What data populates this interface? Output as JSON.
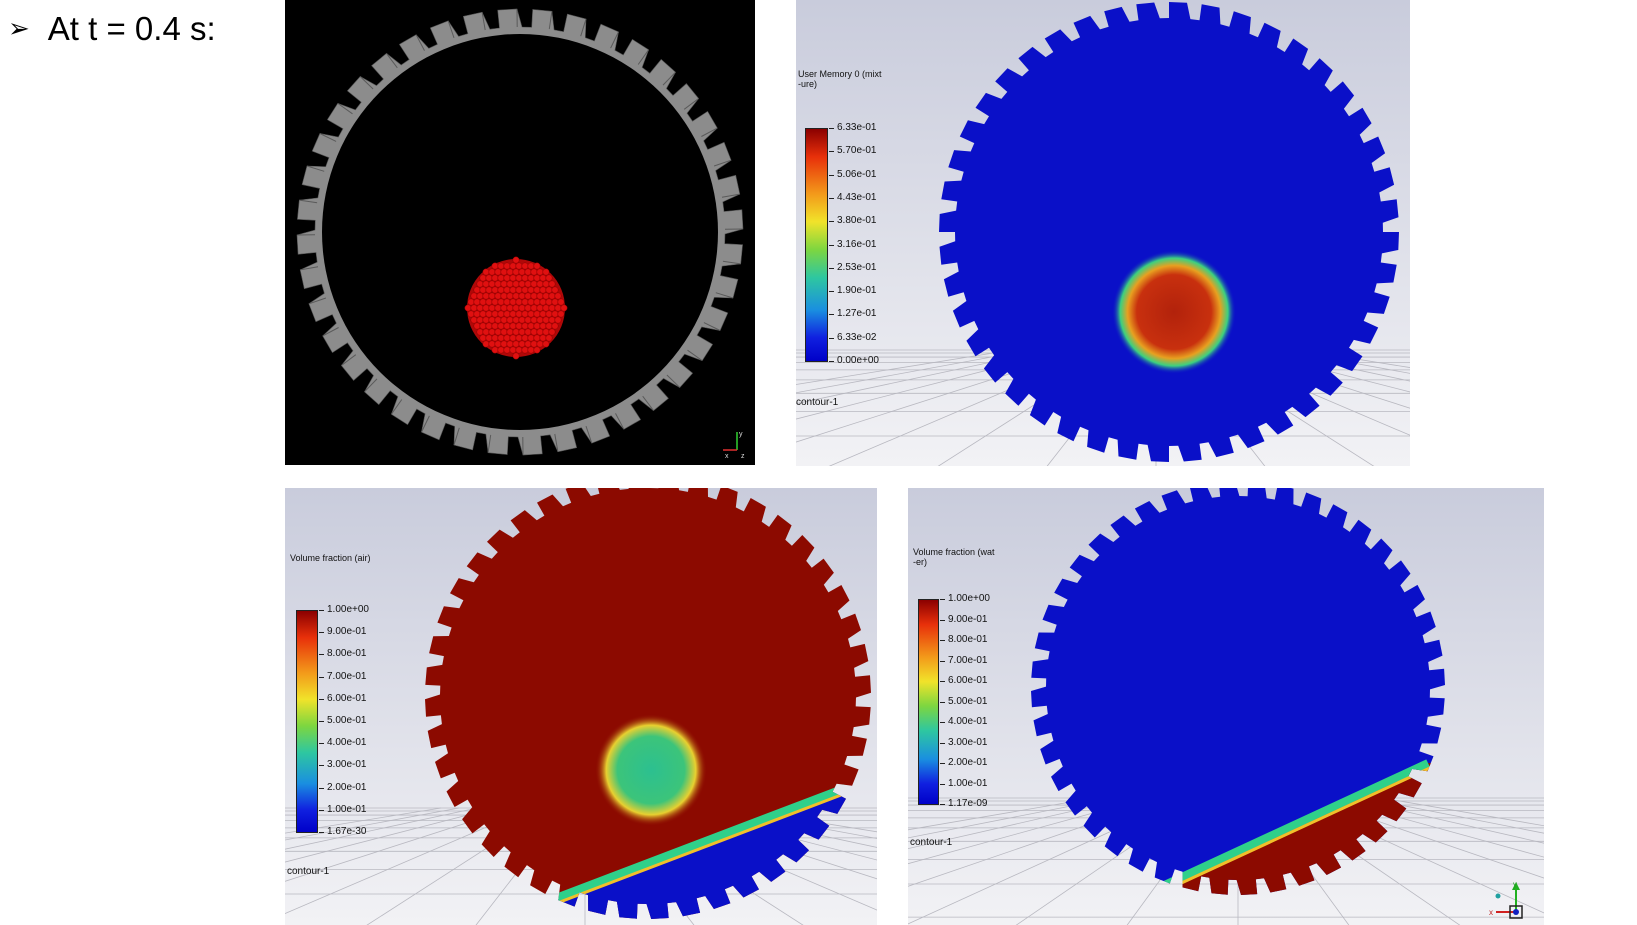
{
  "slide": {
    "bullet_icon": "arrow-bullet-icon",
    "heading": "At t = 0.4 s:"
  },
  "colors": {
    "slide_bg": "#ffffff",
    "dem_bg": "#000000",
    "gear_grey": "#8c8c8c",
    "particle_red": "#e01010",
    "fluent_bg_top": "#c9ccdc",
    "fluent_bg_bottom": "#f2f2f5",
    "contour_blue": "#0a10c8",
    "contour_red": "#8c0a00",
    "contour_green": "#3fc07a"
  },
  "panels": {
    "dem": {
      "name": "particle-view",
      "axis_labels": [
        "x",
        "y",
        "z"
      ]
    },
    "user_memory": {
      "colorbar_title": "User Memory 0 (mixt\n-ure)",
      "colorbar_values": [
        "6.33e-01",
        "5.70e-01",
        "5.06e-01",
        "4.43e-01",
        "3.80e-01",
        "3.16e-01",
        "2.53e-01",
        "1.90e-01",
        "1.27e-01",
        "6.33e-02",
        "0.00e+00"
      ],
      "contour_label": "contour-1"
    },
    "air_fraction": {
      "colorbar_title": "Volume fraction (air)",
      "colorbar_values": [
        "1.00e+00",
        "9.00e-01",
        "8.00e-01",
        "7.00e-01",
        "6.00e-01",
        "5.00e-01",
        "4.00e-01",
        "3.00e-01",
        "2.00e-01",
        "1.00e-01",
        "1.67e-30"
      ],
      "contour_label": "contour-1"
    },
    "water_fraction": {
      "colorbar_title": "Volume fraction (wat\n-er)",
      "colorbar_values": [
        "1.00e+00",
        "9.00e-01",
        "8.00e-01",
        "7.00e-01",
        "6.00e-01",
        "5.00e-01",
        "4.00e-01",
        "3.00e-01",
        "2.00e-01",
        "1.00e-01",
        "1.17e-09"
      ],
      "contour_label": "contour-1",
      "axis_labels": [
        "x",
        "y"
      ]
    }
  }
}
